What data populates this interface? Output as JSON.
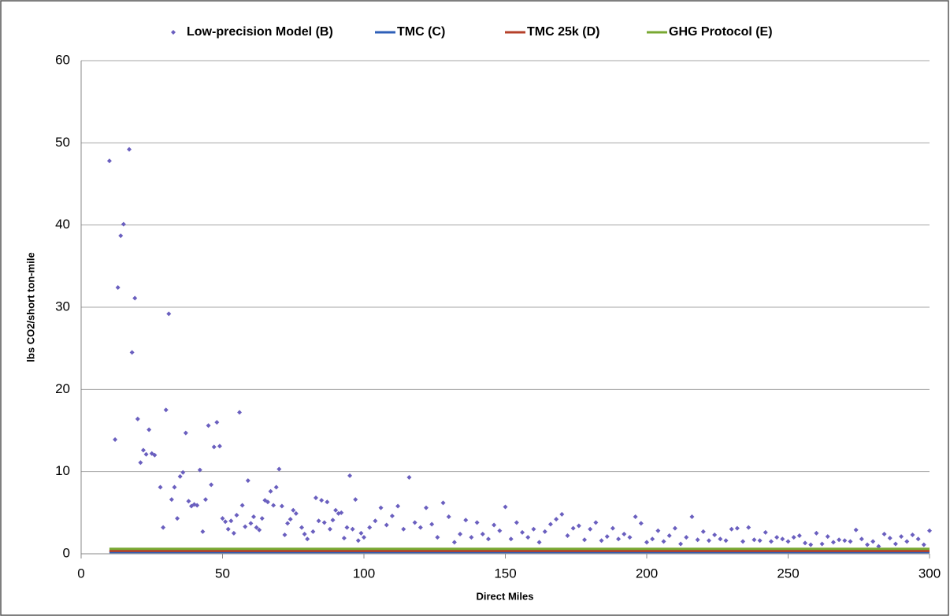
{
  "chart_data": {
    "type": "scatter",
    "xlabel": "Direct Miles",
    "ylabel": "lbs CO2/short ton-mile",
    "xlim": [
      0,
      300
    ],
    "xticks": [
      0,
      50,
      100,
      150,
      200,
      250,
      300
    ],
    "ylim": [
      0,
      60
    ],
    "yticks": [
      0,
      10,
      20,
      30,
      40,
      50,
      60
    ],
    "grid": true,
    "legend": "top",
    "series": [
      {
        "name": "Low-precision Model (B)",
        "type": "scatter",
        "color": "#6a5fbf",
        "x": [
          10,
          12,
          13,
          14,
          15,
          17,
          18,
          19,
          20,
          21,
          22,
          23,
          24,
          25,
          26,
          28,
          29,
          30,
          31,
          32,
          33,
          34,
          35,
          36,
          37,
          38,
          39,
          40,
          41,
          42,
          43,
          44,
          45,
          46,
          47,
          48,
          49,
          50,
          51,
          52,
          53,
          54,
          55,
          56,
          57,
          58,
          59,
          60,
          61,
          62,
          63,
          64,
          65,
          66,
          67,
          68,
          69,
          70,
          71,
          72,
          73,
          74,
          75,
          76,
          78,
          79,
          80,
          82,
          83,
          84,
          85,
          86,
          87,
          88,
          89,
          90,
          91,
          92,
          93,
          94,
          95,
          96,
          97,
          98,
          99,
          100,
          102,
          104,
          106,
          108,
          110,
          112,
          114,
          116,
          118,
          120,
          122,
          124,
          126,
          128,
          130,
          132,
          134,
          136,
          138,
          140,
          142,
          144,
          146,
          148,
          150,
          152,
          154,
          156,
          158,
          160,
          162,
          164,
          166,
          168,
          170,
          172,
          174,
          176,
          178,
          180,
          182,
          184,
          186,
          188,
          190,
          192,
          194,
          196,
          198,
          200,
          202,
          204,
          206,
          208,
          210,
          212,
          214,
          216,
          218,
          220,
          222,
          224,
          226,
          228,
          230,
          232,
          234,
          236,
          238,
          240,
          242,
          244,
          246,
          248,
          250,
          252,
          254,
          256,
          258,
          260,
          262,
          264,
          266,
          268,
          270,
          272,
          274,
          276,
          278,
          280,
          282,
          284,
          286,
          288,
          290,
          292,
          294,
          296,
          298,
          300
        ],
        "values": [
          47.8,
          13.9,
          32.4,
          38.7,
          40.1,
          49.2,
          24.5,
          31.1,
          16.4,
          11.1,
          12.6,
          12.1,
          15.1,
          12.2,
          12.0,
          8.1,
          3.2,
          17.5,
          29.2,
          6.6,
          8.1,
          4.3,
          9.4,
          9.9,
          14.7,
          6.4,
          5.8,
          6.0,
          5.9,
          10.2,
          2.7,
          6.6,
          15.6,
          8.4,
          13.0,
          16.0,
          13.1,
          4.3,
          3.9,
          3.0,
          4.0,
          2.5,
          4.7,
          17.2,
          5.9,
          3.3,
          8.9,
          3.7,
          4.5,
          3.2,
          2.9,
          4.3,
          6.5,
          6.3,
          7.6,
          5.9,
          8.1,
          10.3,
          5.8,
          2.3,
          3.7,
          4.2,
          5.3,
          4.9,
          3.2,
          2.4,
          1.8,
          2.7,
          6.8,
          4.0,
          6.5,
          3.8,
          6.3,
          3.0,
          4.1,
          5.3,
          4.9,
          5.0,
          1.9,
          3.2,
          9.5,
          3.0,
          6.6,
          1.6,
          2.5,
          2.0,
          3.2,
          4.0,
          5.6,
          3.5,
          4.6,
          5.8,
          3.0,
          9.3,
          3.8,
          3.2,
          5.6,
          3.6,
          2.0,
          6.2,
          4.5,
          1.4,
          2.4,
          4.1,
          2.0,
          3.8,
          2.4,
          1.8,
          3.5,
          2.8,
          5.7,
          1.8,
          3.8,
          2.6,
          2.0,
          3.0,
          1.4,
          2.7,
          3.6,
          4.2,
          4.8,
          2.2,
          3.1,
          3.4,
          1.7,
          3.0,
          3.8,
          1.6,
          2.1,
          3.1,
          1.8,
          2.4,
          2.0,
          4.5,
          3.7,
          1.4,
          1.8,
          2.8,
          1.5,
          2.2,
          3.1,
          1.2,
          2.0,
          4.5,
          1.7,
          2.7,
          1.6,
          2.3,
          1.8,
          1.6,
          3.0,
          3.1,
          1.5,
          3.2,
          1.7,
          1.6,
          2.6,
          1.5,
          2.0,
          1.8,
          1.5,
          2.0,
          2.2,
          1.3,
          1.1,
          2.5,
          1.2,
          2.1,
          1.4,
          1.7,
          1.6,
          1.5,
          2.9,
          1.8,
          1.1,
          1.5,
          0.9,
          2.4,
          1.9,
          1.2,
          2.1,
          1.5,
          2.3,
          1.8,
          1.1,
          2.8
        ]
      },
      {
        "name": "TMC (C)",
        "type": "line",
        "color": "#2e5fb8",
        "x": [
          10,
          300
        ],
        "values": [
          0.2,
          0.2
        ]
      },
      {
        "name": "TMC 25k (D)",
        "type": "line",
        "color": "#b5402a",
        "x": [
          10,
          300
        ],
        "values": [
          0.35,
          0.35
        ]
      },
      {
        "name": "GHG Protocol (E)",
        "type": "line",
        "color": "#78a832",
        "x": [
          10,
          300
        ],
        "values": [
          0.6,
          0.6
        ]
      }
    ]
  }
}
